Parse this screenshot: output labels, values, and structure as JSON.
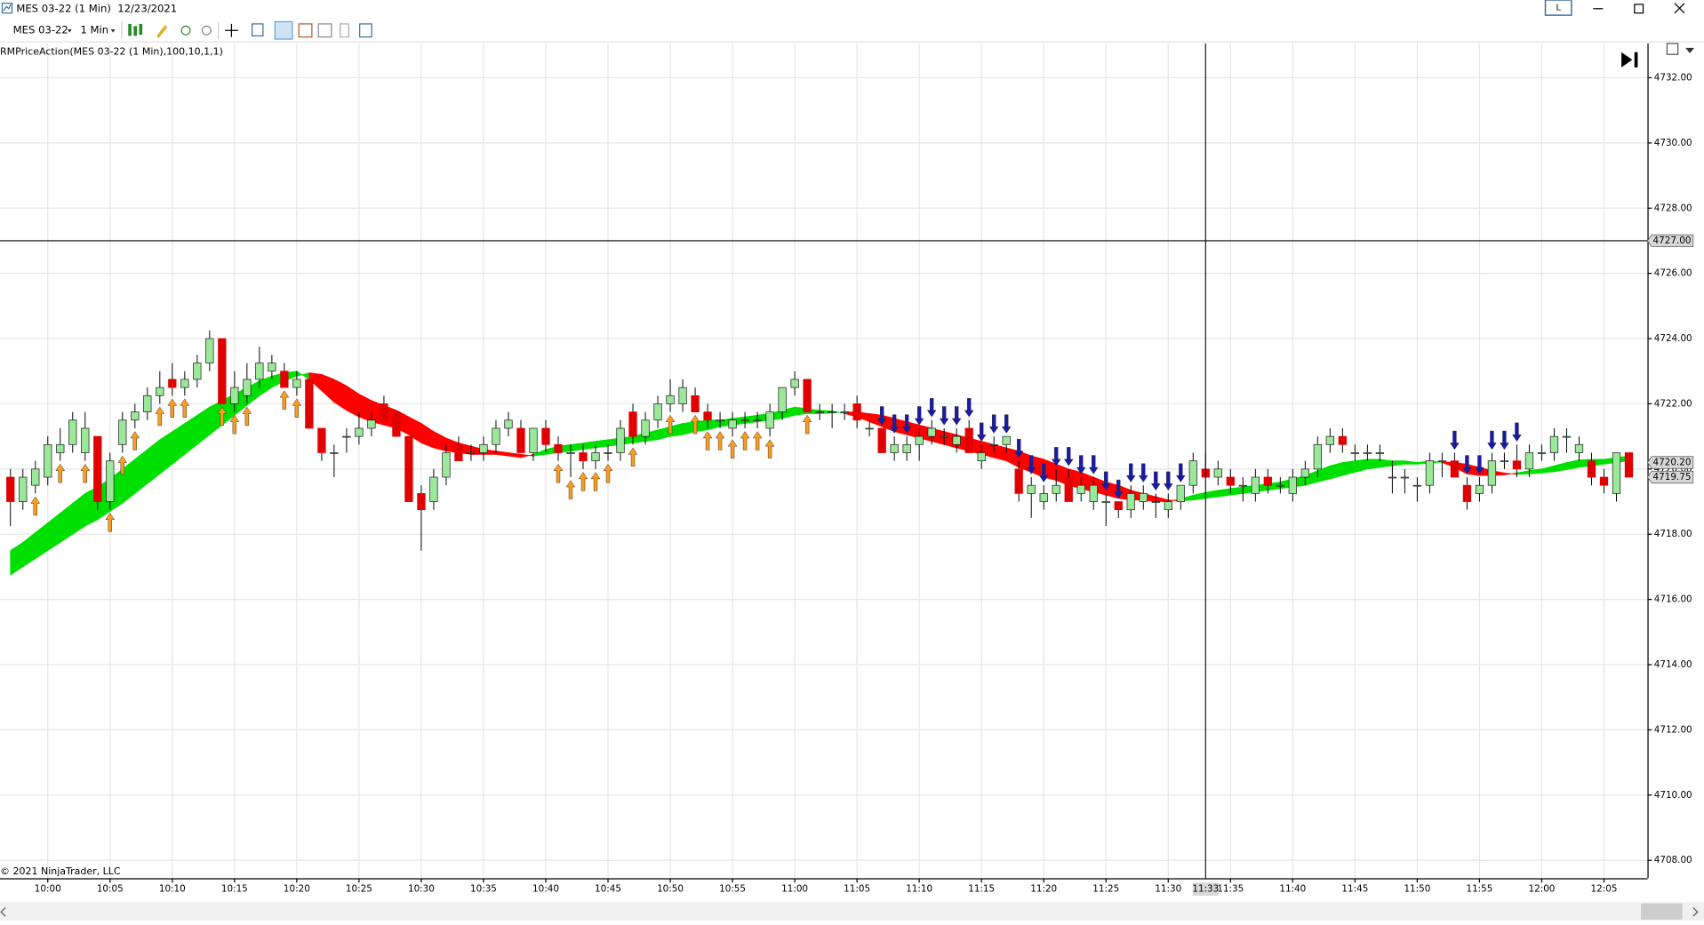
{
  "window": {
    "title": "MES 03-22 (1 Min)  12/23/2021",
    "badge": "L"
  },
  "toolbar": {
    "instrument": "MES 03-22",
    "interval": "1 Min"
  },
  "indicator_label": "RMPriceAction(MES 03-22 (1 Min),100,10,1,1)",
  "copyright": "© 2021 NinjaTrader, LLC",
  "chart_data": {
    "type": "candlestick",
    "categories": [
      null,
      null,
      null,
      "10:00",
      null,
      null,
      null,
      null,
      "10:05",
      null,
      null,
      null,
      null,
      "10:10",
      null,
      null,
      null,
      null,
      "10:15",
      null,
      null,
      null,
      null,
      "10:20",
      null,
      null,
      null,
      null,
      "10:25",
      null,
      null,
      null,
      null,
      "10:30",
      null,
      null,
      null,
      null,
      "10:35",
      null,
      null,
      null,
      null,
      "10:40",
      null,
      null,
      null,
      null,
      "10:45",
      null,
      null,
      null,
      null,
      "10:50",
      null,
      null,
      null,
      null,
      "10:55",
      null,
      null,
      null,
      null,
      "11:00",
      null,
      null,
      null,
      null,
      "11:05",
      null,
      null,
      null,
      null,
      "11:10",
      null,
      null,
      null,
      null,
      "11:15",
      null,
      null,
      null,
      null,
      "11:20",
      null,
      null,
      null,
      null,
      "11:25",
      null,
      null,
      null,
      null,
      "11:30",
      null,
      null,
      null,
      null,
      "11:35",
      null,
      null,
      null,
      null,
      "11:40",
      null,
      null,
      null,
      null,
      "11:45",
      null,
      null,
      null,
      null,
      "11:50",
      null,
      null,
      null,
      null,
      "11:55",
      null,
      null,
      null,
      null,
      "12:00",
      null,
      null,
      null,
      null,
      "12:05",
      null,
      null
    ],
    "open": [
      4719.75,
      4719.0,
      4719.5,
      4719.75,
      4720.5,
      4720.75,
      4720.5,
      4721.0,
      4719.0,
      4720.75,
      4721.5,
      4721.75,
      4722.25,
      4722.75,
      4722.5,
      4722.75,
      4723.25,
      4724.0,
      4722.0,
      4722.25,
      4722.75,
      4723.0,
      4723.0,
      4722.5,
      4722.75,
      4721.25,
      4720.5,
      4721.0,
      4721.0,
      4721.25,
      4722.0,
      4721.75,
      4721.0,
      4719.25,
      4719.0,
      4719.75,
      4720.75,
      4720.5,
      4720.5,
      4720.75,
      4721.25,
      4721.25,
      4720.5,
      4721.25,
      4720.75,
      4720.5,
      4720.5,
      4720.25,
      4720.5,
      4720.5,
      4721.75,
      4721.0,
      4721.5,
      4722.0,
      4722.0,
      4722.25,
      4721.75,
      4721.5,
      4721.25,
      4721.5,
      4721.5,
      4721.25,
      4721.75,
      4722.5,
      4722.75,
      4721.75,
      4721.75,
      4721.75,
      4722.0,
      4721.25,
      4721.25,
      4720.5,
      4720.5,
      4720.75,
      4721.0,
      4721.0,
      4720.75,
      4721.25,
      4720.25,
      4720.75,
      4720.75,
      4720.0,
      4719.25,
      4719.0,
      4719.25,
      4719.75,
      4719.25,
      4719.0,
      4719.0,
      4719.0,
      4718.75,
      4719.0,
      4719.0,
      4718.75,
      4719.0,
      4719.5,
      4720.0,
      4719.75,
      4719.75,
      4719.5,
      4719.25,
      4719.75,
      4719.5,
      4719.25,
      4719.75,
      4720.0,
      4720.75,
      4721.0,
      4720.5,
      4720.5,
      4720.5,
      4719.75,
      4719.75,
      4719.5,
      4719.5,
      4720.25,
      4720.25,
      4719.5,
      4719.25,
      4719.5,
      4720.25,
      4720.25,
      4720.0,
      4720.5,
      4720.5,
      4721.0,
      4720.5,
      4720.25,
      4719.75,
      4719.25,
      4720.5
    ],
    "high": [
      4720.0,
      4720.0,
      4720.25,
      4721.0,
      4721.25,
      4721.75,
      4721.75,
      4721.0,
      4720.5,
      4721.75,
      4722.0,
      4722.5,
      4723.0,
      4723.25,
      4723.0,
      4723.5,
      4724.25,
      4724.0,
      4723.0,
      4723.25,
      4723.75,
      4723.5,
      4723.25,
      4723.0,
      4722.75,
      4721.25,
      4720.75,
      4721.25,
      4721.75,
      4721.75,
      4722.25,
      4721.75,
      4721.0,
      4719.5,
      4720.0,
      4720.75,
      4721.0,
      4720.75,
      4721.0,
      4721.5,
      4721.75,
      4721.5,
      4721.25,
      4721.5,
      4721.0,
      4720.75,
      4720.75,
      4720.75,
      4720.75,
      4721.5,
      4722.0,
      4721.75,
      4722.25,
      4722.75,
      4722.75,
      4722.5,
      4722.0,
      4721.75,
      4721.75,
      4721.75,
      4721.75,
      4722.0,
      4722.5,
      4723.0,
      4722.75,
      4722.0,
      4722.0,
      4722.0,
      4722.25,
      4721.5,
      4721.25,
      4721.0,
      4721.0,
      4721.25,
      4721.5,
      4721.25,
      4721.25,
      4721.5,
      4720.75,
      4721.0,
      4721.0,
      4720.25,
      4719.75,
      4719.5,
      4720.0,
      4720.0,
      4719.75,
      4719.75,
      4719.25,
      4719.0,
      4719.5,
      4719.5,
      4719.25,
      4719.25,
      4719.5,
      4720.5,
      4720.5,
      4720.25,
      4720.0,
      4719.75,
      4720.0,
      4720.0,
      4719.75,
      4720.0,
      4720.25,
      4721.0,
      4721.25,
      4721.25,
      4720.75,
      4720.75,
      4720.75,
      4720.25,
      4720.0,
      4719.75,
      4720.5,
      4720.5,
      4720.5,
      4719.75,
      4719.75,
      4720.5,
      4720.5,
      4720.75,
      4720.75,
      4720.75,
      4721.25,
      4721.25,
      4721.0,
      4720.5,
      4720.0,
      4720.5,
      4720.5
    ],
    "low": [
      4718.25,
      4718.75,
      4719.25,
      4719.5,
      4720.25,
      4720.5,
      4720.25,
      4718.75,
      4718.75,
      4720.5,
      4721.25,
      4721.5,
      4722.0,
      4722.25,
      4722.25,
      4722.5,
      4723.0,
      4722.0,
      4721.75,
      4722.0,
      4722.5,
      4722.75,
      4722.5,
      4722.25,
      4721.25,
      4720.25,
      4719.75,
      4720.5,
      4720.75,
      4721.0,
      4721.5,
      4721.0,
      4719.0,
      4717.5,
      4718.75,
      4719.5,
      4720.25,
      4720.25,
      4720.25,
      4720.5,
      4721.0,
      4720.5,
      4720.25,
      4720.5,
      4720.25,
      4719.75,
      4720.0,
      4720.0,
      4720.25,
      4720.25,
      4720.75,
      4720.75,
      4721.25,
      4721.75,
      4721.75,
      4721.75,
      4721.25,
      4721.25,
      4721.0,
      4721.25,
      4721.25,
      4721.0,
      4721.5,
      4722.25,
      4721.75,
      4721.5,
      4721.25,
      4721.5,
      4721.25,
      4721.0,
      4720.5,
      4720.25,
      4720.25,
      4720.25,
      4720.75,
      4720.75,
      4720.5,
      4720.5,
      4720.0,
      4720.5,
      4720.5,
      4719.0,
      4718.5,
      4718.75,
      4719.0,
      4719.0,
      4719.0,
      4718.75,
      4718.25,
      4718.5,
      4718.5,
      4718.75,
      4718.5,
      4718.5,
      4718.75,
      4719.25,
      4719.75,
      4719.5,
      4719.25,
      4719.0,
      4719.0,
      4719.25,
      4719.25,
      4719.0,
      4719.5,
      4719.75,
      4720.5,
      4720.5,
      4720.25,
      4720.25,
      4720.25,
      4719.25,
      4719.25,
      4719.0,
      4719.25,
      4719.75,
      4719.75,
      4718.75,
      4719.0,
      4719.25,
      4720.0,
      4719.75,
      4719.75,
      4720.25,
      4720.25,
      4720.5,
      4720.25,
      4719.5,
      4719.25,
      4719.0,
      4719.75
    ],
    "close": [
      4719.0,
      4719.75,
      4720.0,
      4720.75,
      4720.75,
      4721.5,
      4721.25,
      4719.0,
      4720.25,
      4721.5,
      4721.75,
      4722.25,
      4722.5,
      4722.5,
      4722.75,
      4723.25,
      4724.0,
      4722.0,
      4722.5,
      4722.75,
      4723.25,
      4723.25,
      4722.5,
      4722.75,
      4721.25,
      4720.5,
      4720.5,
      4721.0,
      4721.25,
      4721.5,
      4721.5,
      4721.0,
      4719.0,
      4718.75,
      4719.75,
      4720.5,
      4720.25,
      4720.5,
      4720.75,
      4721.25,
      4721.5,
      4720.5,
      4721.25,
      4720.75,
      4720.5,
      4720.5,
      4720.25,
      4720.5,
      4720.5,
      4721.25,
      4721.0,
      4721.5,
      4722.0,
      4722.25,
      4722.5,
      4721.75,
      4721.5,
      4721.5,
      4721.5,
      4721.5,
      4721.5,
      4721.75,
      4722.5,
      4722.75,
      4721.75,
      4721.75,
      4721.75,
      4721.75,
      4721.5,
      4721.25,
      4720.5,
      4720.75,
      4720.75,
      4721.0,
      4721.25,
      4721.0,
      4721.0,
      4720.5,
      4720.5,
      4720.75,
      4721.0,
      4719.25,
      4719.5,
      4719.25,
      4719.5,
      4719.0,
      4719.5,
      4719.5,
      4719.0,
      4718.75,
      4719.25,
      4719.25,
      4719.0,
      4719.0,
      4719.5,
      4720.25,
      4719.75,
      4720.0,
      4719.5,
      4719.5,
      4719.75,
      4719.5,
      4719.5,
      4719.75,
      4720.0,
      4720.75,
      4721.0,
      4720.75,
      4720.5,
      4720.5,
      4720.5,
      4719.75,
      4719.75,
      4719.5,
      4720.25,
      4720.25,
      4719.75,
      4719.0,
      4719.5,
      4720.25,
      4720.25,
      4720.0,
      4720.5,
      4720.5,
      4721.0,
      4721.0,
      4720.75,
      4719.75,
      4719.5,
      4720.5,
      4719.75
    ],
    "up_color": "#9be89b",
    "down_color": "#e00000",
    "ribbon": {
      "up_color": "#00e000",
      "down_color": "#ff0000",
      "fast": [
        4717.5,
        4717.75,
        4718.05,
        4718.35,
        4718.65,
        4718.95,
        4719.25,
        4719.45,
        4719.7,
        4720.0,
        4720.3,
        4720.6,
        4720.9,
        4721.15,
        4721.4,
        4721.65,
        4721.9,
        4722.1,
        4722.3,
        4722.5,
        4722.7,
        4722.85,
        4722.95,
        4723.0,
        4722.75,
        4722.4,
        4722.05,
        4721.8,
        4721.6,
        4721.45,
        4721.35,
        4721.25,
        4721.05,
        4720.8,
        4720.65,
        4720.55,
        4720.5,
        4720.45,
        4720.45,
        4720.45,
        4720.4,
        4720.35,
        4720.45,
        4720.6,
        4720.7,
        4720.75,
        4720.8,
        4720.85,
        4720.9,
        4720.95,
        4721.0,
        4721.1,
        4721.2,
        4721.3,
        4721.4,
        4721.45,
        4721.5,
        4721.5,
        4721.55,
        4721.6,
        4721.65,
        4721.7,
        4721.8,
        4721.9,
        4721.85,
        4721.8,
        4721.78,
        4721.7,
        4721.6,
        4721.45,
        4721.3,
        4721.15,
        4721.05,
        4720.95,
        4720.85,
        4720.75,
        4720.65,
        4720.55,
        4720.45,
        4720.35,
        4720.25,
        4720.05,
        4719.9,
        4719.75,
        4719.65,
        4719.5,
        4719.4,
        4719.3,
        4719.2,
        4719.1,
        4719.05,
        4719.05,
        4719.0,
        4719.0,
        4719.08,
        4719.2,
        4719.28,
        4719.35,
        4719.4,
        4719.45,
        4719.5,
        4719.55,
        4719.6,
        4719.7,
        4719.8,
        4719.95,
        4720.1,
        4720.2,
        4720.25,
        4720.3,
        4720.3,
        4720.25,
        4720.25,
        4720.2,
        4720.25,
        4720.2,
        4720.05,
        4719.85,
        4719.8,
        4719.8,
        4719.82,
        4719.88,
        4719.95,
        4720.0,
        4720.1,
        4720.2,
        4720.28,
        4720.3,
        4720.3,
        4720.35,
        4720.4
      ],
      "slow": [
        4716.75,
        4717.0,
        4717.25,
        4717.5,
        4717.75,
        4718.0,
        4718.25,
        4718.45,
        4718.7,
        4718.95,
        4719.25,
        4719.55,
        4719.85,
        4720.15,
        4720.45,
        4720.75,
        4721.05,
        4721.35,
        4721.65,
        4721.95,
        4722.25,
        4722.5,
        4722.7,
        4722.85,
        4722.95,
        4722.9,
        4722.75,
        4722.55,
        4722.3,
        4722.1,
        4721.95,
        4721.8,
        4721.6,
        4721.4,
        4721.15,
        4720.95,
        4720.8,
        4720.7,
        4720.6,
        4720.55,
        4720.5,
        4720.45,
        4720.4,
        4720.45,
        4720.5,
        4720.55,
        4720.6,
        4720.65,
        4720.7,
        4720.75,
        4720.8,
        4720.85,
        4720.9,
        4721.0,
        4721.05,
        4721.15,
        4721.2,
        4721.3,
        4721.35,
        4721.4,
        4721.45,
        4721.5,
        4721.55,
        4721.65,
        4721.7,
        4721.7,
        4721.72,
        4721.75,
        4721.75,
        4721.7,
        4721.65,
        4721.55,
        4721.45,
        4721.35,
        4721.25,
        4721.15,
        4721.05,
        4720.95,
        4720.85,
        4720.75,
        4720.65,
        4720.55,
        4720.4,
        4720.3,
        4720.15,
        4720.0,
        4719.9,
        4719.75,
        4719.6,
        4719.5,
        4719.35,
        4719.25,
        4719.15,
        4719.05,
        4719.02,
        4719.05,
        4719.1,
        4719.15,
        4719.2,
        4719.25,
        4719.3,
        4719.35,
        4719.4,
        4719.45,
        4719.5,
        4719.6,
        4719.7,
        4719.8,
        4719.9,
        4720.0,
        4720.05,
        4720.1,
        4720.15,
        4720.15,
        4720.18,
        4720.22,
        4720.2,
        4720.15,
        4720.05,
        4719.95,
        4719.88,
        4719.84,
        4719.85,
        4719.88,
        4719.92,
        4719.98,
        4720.05,
        4720.1,
        4720.15,
        4720.2,
        4720.25
      ]
    },
    "signals": [
      null,
      null,
      "up",
      null,
      "up",
      null,
      "up",
      null,
      "up",
      "up",
      "up",
      null,
      "up",
      "up",
      "up",
      null,
      null,
      "up",
      "up",
      "up",
      null,
      null,
      "up",
      "up",
      null,
      null,
      null,
      null,
      null,
      null,
      null,
      null,
      null,
      null,
      null,
      null,
      null,
      null,
      null,
      null,
      null,
      null,
      null,
      null,
      "up",
      "up",
      "up",
      "up",
      "up",
      null,
      "up",
      null,
      null,
      "up",
      null,
      "up",
      "up",
      "up",
      "up",
      "up",
      "up",
      "up",
      null,
      null,
      "up",
      null,
      null,
      null,
      null,
      null,
      "down",
      "down",
      "down",
      "down",
      "down",
      "down",
      "down",
      "down",
      "down",
      "down",
      "down",
      "down",
      "down",
      "down",
      "down",
      "down",
      "down",
      "down",
      "down",
      "down",
      "down",
      "down",
      "down",
      "down",
      "down",
      null,
      null,
      null,
      null,
      null,
      null,
      null,
      null,
      null,
      null,
      null,
      null,
      null,
      null,
      null,
      null,
      null,
      null,
      null,
      null,
      null,
      "down",
      "down",
      "down",
      "down",
      "down",
      "down",
      null,
      null,
      null,
      null,
      null,
      null,
      null,
      null,
      null
    ],
    "signal_colors": {
      "up": "#ff9c1a",
      "down": "#1a1aa8"
    },
    "ylim": [
      4707.45,
      4733.05
    ],
    "yticks": [
      {
        "value": 4708,
        "label": "4708.00"
      },
      {
        "value": 4710,
        "label": "4710.00"
      },
      {
        "value": 4712,
        "label": "4712.00"
      },
      {
        "value": 4714,
        "label": "4714.00"
      },
      {
        "value": 4716,
        "label": "4716.00"
      },
      {
        "value": 4718,
        "label": "4718.00"
      },
      {
        "value": 4720,
        "label": "4720.00"
      },
      {
        "value": 4722,
        "label": "4722.00"
      },
      {
        "value": 4724,
        "label": "4724.00"
      },
      {
        "value": 4726,
        "label": "4726.00"
      },
      {
        "value": 4728,
        "label": "4728.00"
      },
      {
        "value": 4730,
        "label": "4730.00"
      },
      {
        "value": 4732,
        "label": "4732.00"
      }
    ],
    "grid": true,
    "crosshair": {
      "x": "11:33",
      "y": {
        "value": 4727,
        "label": "4727.00"
      }
    },
    "price_markers": [
      {
        "value": 4720.2,
        "label": "4720.20"
      },
      {
        "value": 4719.75,
        "label": "4719.75"
      }
    ]
  }
}
